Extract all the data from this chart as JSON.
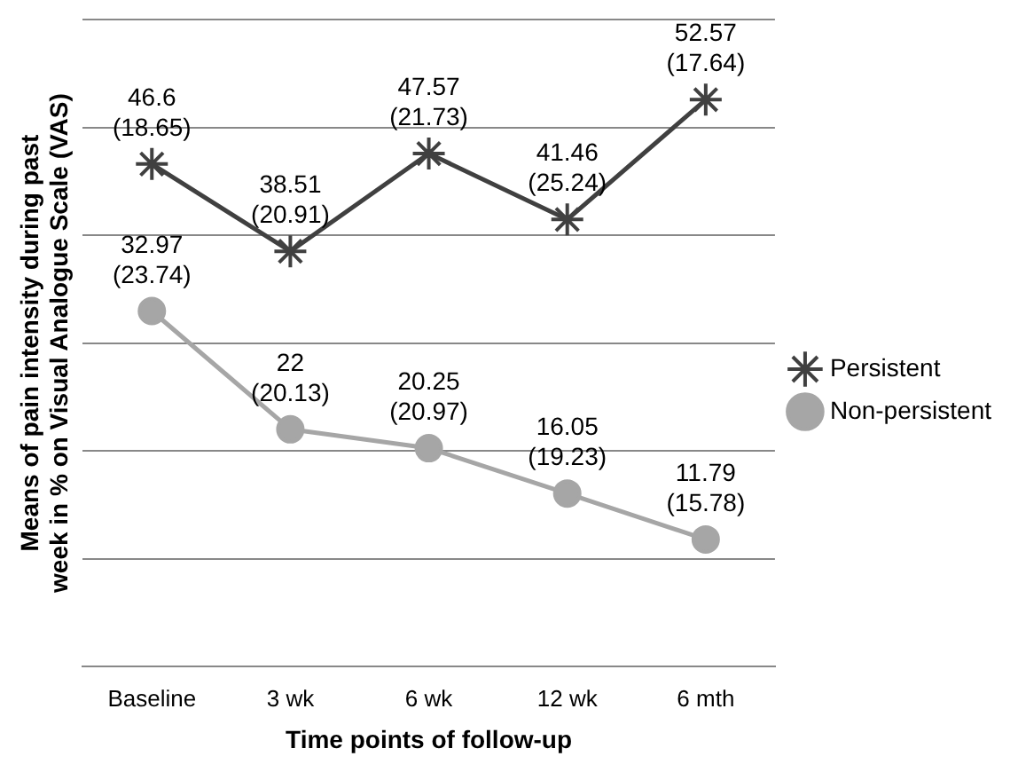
{
  "chart_data": {
    "type": "line",
    "xlabel": "Time points of follow-up",
    "ylabel": "Means of pain intensity during past week in % on Visual Analogue Scale (VAS)",
    "categories": [
      "Baseline",
      "3 wk",
      "6 wk",
      "12 wk",
      "6 mth"
    ],
    "series": [
      {
        "name": "Persistent",
        "color": "#404040",
        "marker": "cross",
        "values": [
          46.6,
          38.51,
          47.57,
          41.46,
          52.57
        ],
        "value_labels": [
          "46.6\n(18.65)",
          "38.51\n(20.91)",
          "47.57\n(21.73)",
          "41.46\n(25.24)",
          "52.57\n(17.64)"
        ]
      },
      {
        "name": "Non-persistent",
        "color": "#a6a6a6",
        "marker": "circle",
        "values": [
          32.97,
          22,
          20.25,
          16.05,
          11.79
        ],
        "value_labels": [
          "32.97\n(23.74)",
          "22\n(20.13)",
          "20.25\n(20.97)",
          "16.05\n(19.23)",
          "11.79\n(15.78)"
        ]
      }
    ],
    "ylim": [
      0,
      60
    ],
    "yticks": [
      {
        "value": 0,
        "label": null
      },
      {
        "value": 10,
        "label": null
      },
      {
        "value": 20,
        "label": null
      },
      {
        "value": 30,
        "label": null
      },
      {
        "value": 40,
        "label": null
      },
      {
        "value": 50,
        "label": null
      },
      {
        "value": 60,
        "label": null
      }
    ],
    "tick_labels": "x",
    "grid": "y",
    "legend": "right",
    "line_style": "solid"
  }
}
